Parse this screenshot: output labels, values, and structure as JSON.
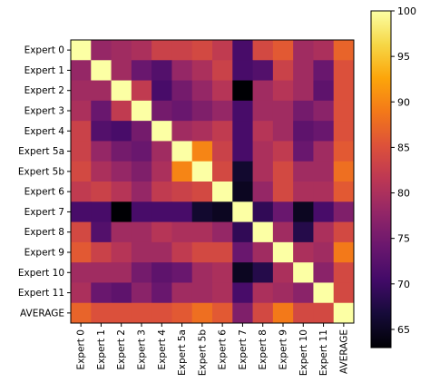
{
  "chart_data": {
    "type": "heatmap",
    "title": "",
    "xlabel": "",
    "ylabel": "",
    "row_labels": [
      "Expert 0",
      "Expert 1",
      "Expert 2",
      "Expert 3",
      "Expert 4",
      "Expert 5a",
      "Expert 5b",
      "Expert 6",
      "Expert 7",
      "Expert 8",
      "Expert 9",
      "Expert 10",
      "Expert 11",
      "AVERAGE"
    ],
    "col_labels": [
      "Expert 0",
      "Expert 1",
      "Expert 2",
      "Expert 3",
      "Expert 4",
      "Expert 5a",
      "Expert 5b",
      "Expert 6",
      "Expert 7",
      "Expert 8",
      "Expert 9",
      "Expert 10",
      "Expert 11",
      "AVERAGE"
    ],
    "colormap": "inferno",
    "colorbar": {
      "min": 63,
      "max": 100,
      "ticks": [
        65,
        70,
        75,
        80,
        85,
        90,
        95,
        100
      ]
    },
    "values": [
      [
        100,
        78,
        79,
        80,
        83,
        83,
        84,
        82,
        71,
        84,
        86,
        79,
        80,
        87
      ],
      [
        78,
        100,
        79,
        74,
        72,
        78,
        80,
        83,
        71,
        72,
        83,
        79,
        74,
        85
      ],
      [
        79,
        79,
        100,
        82,
        71,
        75,
        78,
        81,
        63,
        79,
        81,
        79,
        73,
        85
      ],
      [
        80,
        74,
        82,
        100,
        75,
        74,
        76,
        78,
        71,
        79,
        79,
        75,
        77,
        85
      ],
      [
        83,
        72,
        71,
        75,
        100,
        79,
        80,
        82,
        71,
        81,
        79,
        73,
        74,
        85
      ],
      [
        83,
        78,
        75,
        74,
        79,
        100,
        90,
        83,
        71,
        80,
        82,
        74,
        79,
        86
      ],
      [
        84,
        80,
        78,
        76,
        80,
        90,
        100,
        84,
        66,
        80,
        84,
        79,
        79,
        88
      ],
      [
        82,
        83,
        81,
        78,
        82,
        83,
        84,
        100,
        65,
        78,
        84,
        80,
        80,
        86
      ],
      [
        71,
        71,
        63,
        71,
        71,
        71,
        66,
        65,
        100,
        69,
        74,
        65,
        71,
        76
      ],
      [
        84,
        72,
        79,
        79,
        81,
        80,
        80,
        78,
        69,
        100,
        79,
        68,
        80,
        84
      ],
      [
        86,
        83,
        81,
        79,
        79,
        82,
        84,
        84,
        74,
        79,
        100,
        80,
        79,
        89
      ],
      [
        79,
        79,
        79,
        75,
        73,
        74,
        79,
        80,
        65,
        68,
        80,
        100,
        77,
        84
      ],
      [
        80,
        74,
        73,
        77,
        74,
        79,
        79,
        80,
        71,
        80,
        79,
        77,
        100,
        84
      ],
      [
        87,
        85,
        85,
        85,
        85,
        86,
        88,
        86,
        76,
        84,
        89,
        84,
        84,
        100
      ]
    ]
  }
}
